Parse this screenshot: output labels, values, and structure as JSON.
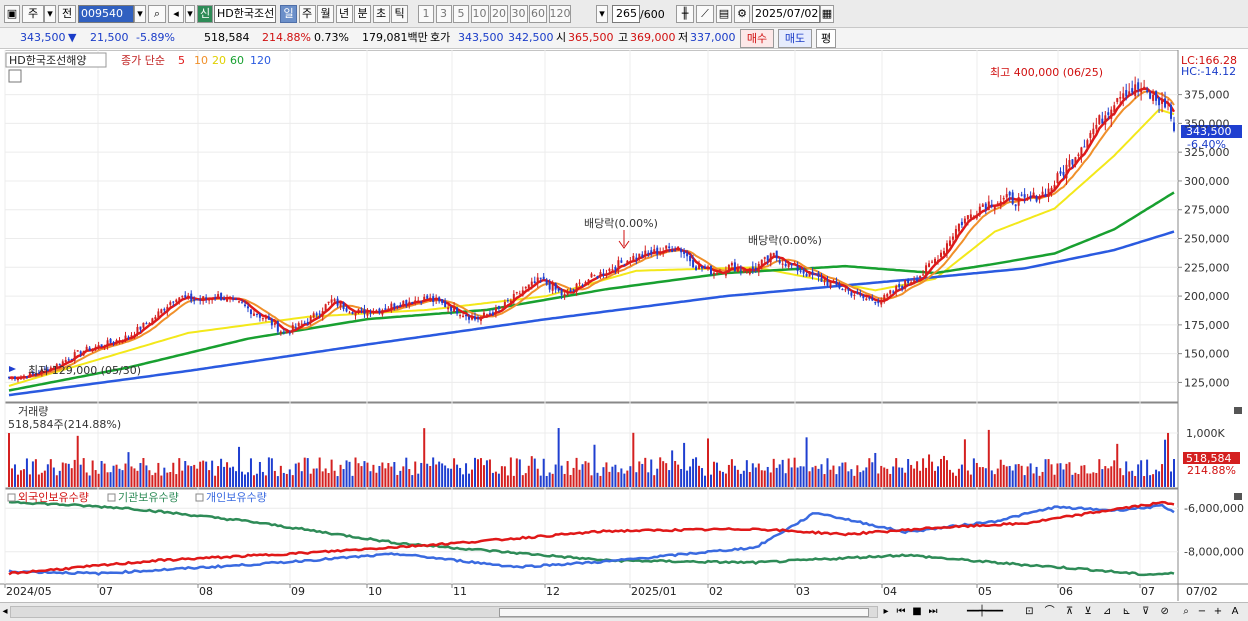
{
  "toolbar": {
    "period_left": "주",
    "prev_label": "전",
    "code": "009540",
    "new_badge": "신",
    "stock_name": "HD한국조선",
    "tabs": [
      "일",
      "주",
      "월",
      "년",
      "분",
      "초",
      "틱"
    ],
    "intervals": [
      "1",
      "3",
      "5",
      "10",
      "20",
      "30",
      "60",
      "120"
    ],
    "count": "265",
    "max_count": "/600",
    "date": "2025/07/02"
  },
  "quote": {
    "price": "343,500",
    "arrow": "▼",
    "change": "21,500",
    "change_pct": "-5.89%",
    "volume": "518,584",
    "volume_ratio": "214.88%",
    "turnover": "0.73%",
    "amount": "179,081백만",
    "bid_label": "호가",
    "ask": "343,500",
    "bid": "342,500",
    "open_label": "시",
    "open": "365,500",
    "high_label": "고",
    "high": "369,000",
    "low_label": "저",
    "low": "337,000",
    "buy_label": "매수",
    "sell_label": "매도",
    "avg_label": "평"
  },
  "price_panel": {
    "name": "HD한국조선해양",
    "ma_caption": "종가 단순",
    "ma_periods": [
      "5",
      "10",
      "20",
      "60",
      "120"
    ],
    "lc": "LC:166.28",
    "hc": "HC:-14.12",
    "current_tag": "343,500",
    "current_pct": "-6.40%",
    "high_note": "최고 400,000 (06/25)",
    "low_note": "최저 129,000 (05/30)",
    "dividend_1": "배당락(0.00%)",
    "dividend_2": "배당락(0.00%)"
  },
  "volume_panel": {
    "title": "거래량",
    "value": "518,584주(214.88%)",
    "tag": "518,584",
    "tag_pct": "214.88%"
  },
  "holding_panel": {
    "series": [
      "외국인보유수량",
      "기관보유수량",
      "개인보유수량"
    ]
  },
  "colors": {
    "up": "#d42020",
    "down": "#1f3fd0",
    "ma5": "#e01818",
    "ma10": "#f0902a",
    "ma20": "#f3e81a",
    "ma60": "#18a030",
    "ma120": "#2a5ae0",
    "foreign": "#e01818",
    "inst": "#2e8b57",
    "indiv": "#3a6ae0"
  },
  "chart_data": {
    "type": "candlestick",
    "x_ticks": [
      "2024/05",
      "07",
      "08",
      "09",
      "10",
      "11",
      "12",
      "2025/01",
      "02",
      "03",
      "04",
      "05",
      "06",
      "07",
      "07/02"
    ],
    "price_y_ticks": [
      125000,
      150000,
      175000,
      200000,
      225000,
      250000,
      275000,
      300000,
      325000,
      350000,
      375000
    ],
    "price_ylim": [
      108000,
      412000
    ],
    "price_path": [
      [
        0,
        129000
      ],
      [
        8,
        132000
      ],
      [
        16,
        140000
      ],
      [
        24,
        152000
      ],
      [
        32,
        158000
      ],
      [
        40,
        165000
      ],
      [
        48,
        180000
      ],
      [
        56,
        200000
      ],
      [
        62,
        196000
      ],
      [
        70,
        200000
      ],
      [
        78,
        192000
      ],
      [
        86,
        180000
      ],
      [
        92,
        168000
      ],
      [
        100,
        178000
      ],
      [
        108,
        196000
      ],
      [
        116,
        186000
      ],
      [
        124,
        188000
      ],
      [
        132,
        195000
      ],
      [
        140,
        198000
      ],
      [
        148,
        190000
      ],
      [
        156,
        180000
      ],
      [
        164,
        188000
      ],
      [
        172,
        205000
      ],
      [
        178,
        214000
      ],
      [
        186,
        200000
      ],
      [
        192,
        212000
      ],
      [
        200,
        222000
      ],
      [
        208,
        233000
      ],
      [
        216,
        238000
      ],
      [
        224,
        243000
      ],
      [
        230,
        226000
      ],
      [
        236,
        221000
      ],
      [
        242,
        226000
      ],
      [
        248,
        222000
      ],
      [
        256,
        235000
      ],
      [
        262,
        226000
      ],
      [
        270,
        216000
      ],
      [
        278,
        208000
      ],
      [
        286,
        198000
      ],
      [
        292,
        196000
      ],
      [
        298,
        208000
      ],
      [
        306,
        220000
      ],
      [
        312,
        238000
      ],
      [
        318,
        262000
      ],
      [
        326,
        280000
      ],
      [
        334,
        284000
      ],
      [
        340,
        282000
      ],
      [
        348,
        292000
      ],
      [
        354,
        312000
      ],
      [
        360,
        335000
      ],
      [
        366,
        355000
      ],
      [
        372,
        378000
      ],
      [
        378,
        380000
      ],
      [
        384,
        370000
      ],
      [
        388,
        366000
      ],
      [
        390,
        343500
      ]
    ],
    "price_n": 391,
    "ma20_path": [
      [
        0,
        122000
      ],
      [
        60,
        168000
      ],
      [
        100,
        182000
      ],
      [
        140,
        188000
      ],
      [
        180,
        200000
      ],
      [
        210,
        222000
      ],
      [
        250,
        225000
      ],
      [
        290,
        205000
      ],
      [
        310,
        215000
      ],
      [
        330,
        256000
      ],
      [
        350,
        276000
      ],
      [
        370,
        322000
      ],
      [
        385,
        362000
      ],
      [
        390,
        358000
      ]
    ],
    "ma60_path": [
      [
        0,
        118000
      ],
      [
        40,
        138000
      ],
      [
        80,
        163000
      ],
      [
        120,
        180000
      ],
      [
        160,
        188000
      ],
      [
        200,
        206000
      ],
      [
        240,
        220000
      ],
      [
        280,
        226000
      ],
      [
        310,
        220000
      ],
      [
        330,
        228000
      ],
      [
        350,
        237000
      ],
      [
        370,
        258000
      ],
      [
        390,
        290000
      ]
    ],
    "ma120_path": [
      [
        0,
        114000
      ],
      [
        60,
        135000
      ],
      [
        120,
        158000
      ],
      [
        180,
        180000
      ],
      [
        240,
        200000
      ],
      [
        300,
        214000
      ],
      [
        340,
        224000
      ],
      [
        370,
        240000
      ],
      [
        390,
        256000
      ]
    ],
    "volume_y_ticks": [
      "1,000K"
    ],
    "volume_ylim": [
      0,
      1500000
    ],
    "holding_y_ticks": [
      "-6,000,000",
      "-8,000,000"
    ],
    "holding_ylim": [
      -9300000,
      -5300000
    ],
    "foreign_path": [
      [
        0,
        -9000000
      ],
      [
        50,
        -8400000
      ],
      [
        100,
        -8050000
      ],
      [
        150,
        -7600000
      ],
      [
        200,
        -7050000
      ],
      [
        250,
        -6950000
      ],
      [
        280,
        -7200000
      ],
      [
        310,
        -6900000
      ],
      [
        340,
        -6700000
      ],
      [
        370,
        -6050000
      ],
      [
        386,
        -5750000
      ],
      [
        390,
        -5800000
      ]
    ],
    "inst_path": [
      [
        0,
        -5700000
      ],
      [
        40,
        -6000000
      ],
      [
        80,
        -6600000
      ],
      [
        130,
        -7600000
      ],
      [
        200,
        -8400000
      ],
      [
        250,
        -8500000
      ],
      [
        300,
        -8150000
      ],
      [
        330,
        -8500000
      ],
      [
        360,
        -8800000
      ],
      [
        380,
        -9050000
      ],
      [
        390,
        -9000000
      ]
    ],
    "indiv_path": [
      [
        0,
        -8900000
      ],
      [
        30,
        -9000000
      ],
      [
        80,
        -8600000
      ],
      [
        130,
        -8100000
      ],
      [
        170,
        -8700000
      ],
      [
        200,
        -8450000
      ],
      [
        250,
        -7800000
      ],
      [
        270,
        -6200000
      ],
      [
        300,
        -7100000
      ],
      [
        330,
        -6600000
      ],
      [
        350,
        -5950000
      ],
      [
        370,
        -6100000
      ],
      [
        386,
        -5900000
      ],
      [
        390,
        -6200000
      ]
    ]
  }
}
